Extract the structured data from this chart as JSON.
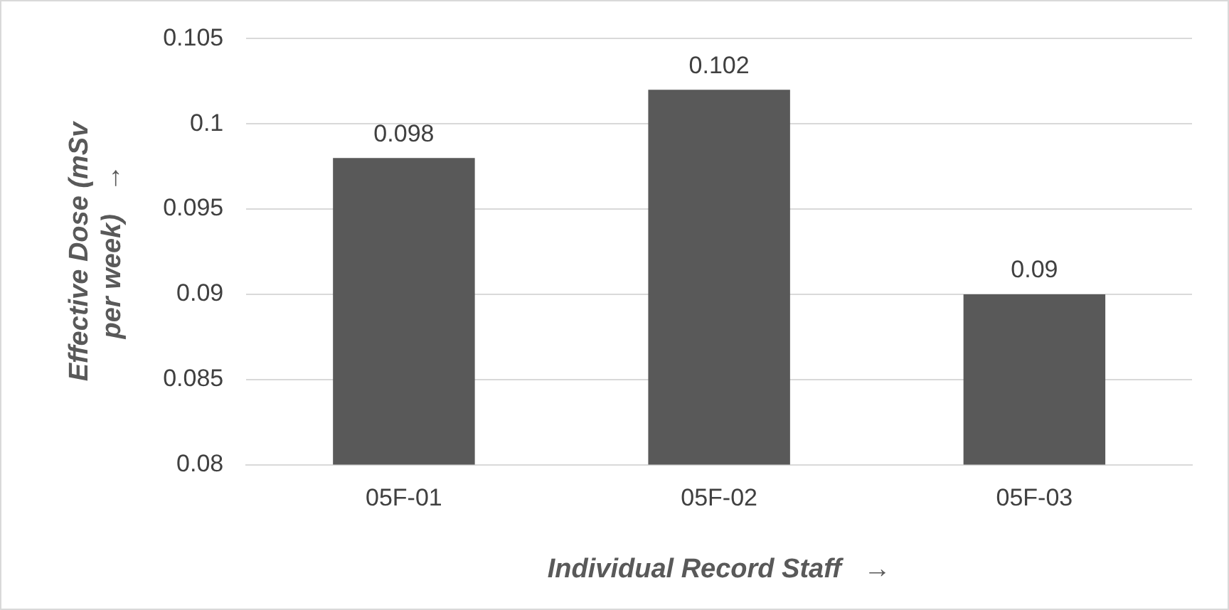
{
  "chart_data": {
    "type": "bar",
    "categories": [
      "05F-01",
      "05F-02",
      "05F-03"
    ],
    "values": [
      0.098,
      0.102,
      0.09
    ],
    "color": "#595959",
    "ylim": [
      0.08,
      0.105
    ],
    "yticks": [
      {
        "value": 0.08,
        "label": "0.08"
      },
      {
        "value": 0.085,
        "label": "0.085"
      },
      {
        "value": 0.09,
        "label": "0.09"
      },
      {
        "value": 0.095,
        "label": "0.095"
      },
      {
        "value": 0.1,
        "label": "0.1"
      },
      {
        "value": 0.105,
        "label": "0.105"
      }
    ],
    "grid": "y",
    "data_labels": true,
    "legend": false,
    "xlabel": "Individual Record Staff   →",
    "ylabel": "Effective Dose (mSv per week)   →"
  }
}
